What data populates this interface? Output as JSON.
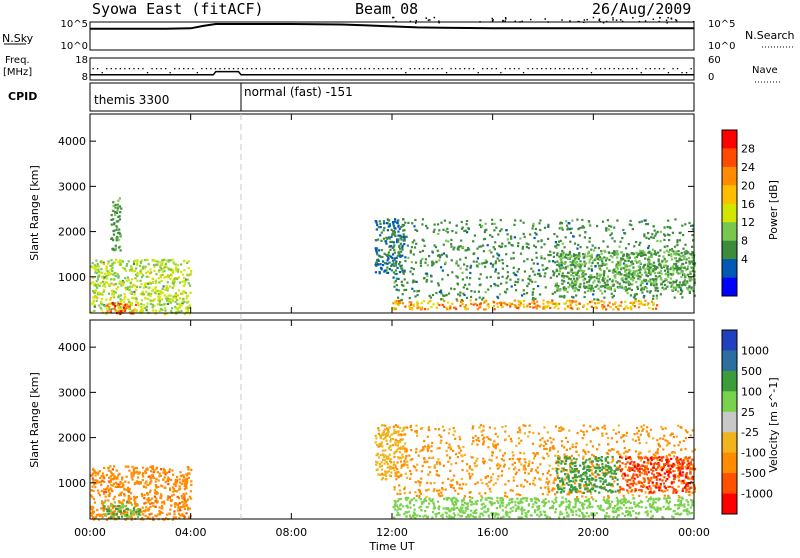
{
  "header": {
    "title": "Syowa East (fitACF)",
    "beam": "Beam 08",
    "date": "26/Aug/2009"
  },
  "top_panels": {
    "nsky_label": "N.Sky",
    "nsky_ticks": [
      "10^5",
      "10^0"
    ],
    "nsearch_label": "N.Search",
    "nsearch_ticks": [
      "10^5",
      "10^0"
    ],
    "freq_label_line1": "Freq.",
    "freq_label_line2": "[MHz]",
    "freq_ticks": [
      "18",
      "8"
    ],
    "nave_label": "Nave",
    "nave_ticks": [
      "60",
      "0"
    ],
    "cpid_label": "CPID",
    "cpid_segments": [
      {
        "label": "themis 3300",
        "start_hour": 0,
        "end_hour": 6
      },
      {
        "label": "normal (fast) -151",
        "start_hour": 6,
        "end_hour": 24
      }
    ]
  },
  "time_axis": {
    "label": "Time UT",
    "ticks": [
      "00:00",
      "04:00",
      "08:00",
      "12:00",
      "16:00",
      "20:00",
      "00:00"
    ]
  },
  "power_colorbar": {
    "label": "Power [dB]",
    "ticks": [
      "28",
      "24",
      "20",
      "16",
      "12",
      "8",
      "4"
    ],
    "colors": [
      "#ff0000",
      "#ff4b00",
      "#ff8c00",
      "#ffbe00",
      "#d2e600",
      "#78c850",
      "#3c8c3c",
      "#005ab4",
      "#0000ff"
    ]
  },
  "velocity_colorbar": {
    "label": "Velocity [m s^-1]",
    "ticks": [
      "1000",
      "500",
      "100",
      "25",
      "-25",
      "-100",
      "-500",
      "-1000"
    ],
    "colors": [
      "#2040c0",
      "#2c6ea0",
      "#3c9c3c",
      "#78d24b",
      "#c8c8c8",
      "#f0b41e",
      "#ff8c00",
      "#ff5000",
      "#ff0000"
    ]
  },
  "chart_data": [
    {
      "type": "line",
      "title": "N.Sky / N.Search",
      "xlim": [
        0,
        24
      ],
      "ylim": [
        0,
        5
      ],
      "log_scale": true,
      "x": [
        0,
        1,
        2,
        3,
        4,
        4.5,
        5,
        6,
        8,
        10,
        11,
        12,
        13,
        14,
        16,
        20,
        22,
        24
      ],
      "series": [
        {
          "name": "N.Sky",
          "values": [
            4.0,
            4.0,
            4.0,
            4.0,
            4.1,
            4.6,
            5.0,
            5.0,
            5.0,
            4.9,
            4.7,
            4.5,
            4.3,
            4.2,
            4.1,
            4.1,
            4.1,
            4.1
          ]
        }
      ]
    },
    {
      "type": "line",
      "title": "Freq / Nave",
      "xlim": [
        0,
        24
      ],
      "ylim": [
        8,
        18
      ],
      "x": [
        0,
        1,
        2,
        3,
        4,
        4.9,
        5.0,
        5.9,
        6.0,
        8,
        10,
        12,
        14,
        16,
        18,
        20,
        22,
        24
      ],
      "series": [
        {
          "name": "Freq.",
          "values": [
            10,
            10,
            10,
            10,
            10,
            10,
            12,
            12,
            10,
            10,
            10,
            10,
            10,
            10,
            10,
            10,
            10,
            10
          ]
        },
        {
          "name": "Nave",
          "values": [
            45,
            45,
            45,
            45,
            45,
            45,
            45,
            45,
            42,
            42,
            42,
            42,
            42,
            42,
            42,
            42,
            42,
            42
          ]
        }
      ]
    },
    {
      "type": "heatmap",
      "title": "Power [dB]",
      "xlabel": "Time UT",
      "ylabel": "Slant Range [km]",
      "xlim": [
        0,
        24
      ],
      "ylim": [
        200,
        4600
      ],
      "yticks": [
        1000,
        2000,
        3000,
        4000
      ],
      "clim": [
        0,
        32
      ],
      "regions": [
        {
          "t0": 0.0,
          "t1": 4.0,
          "r0": 200,
          "r1": 1400,
          "value": 14
        },
        {
          "t0": 0.6,
          "t1": 1.8,
          "r0": 200,
          "r1": 450,
          "value": 28
        },
        {
          "t0": 0.8,
          "t1": 1.2,
          "r0": 1600,
          "r1": 2800,
          "value": 9
        },
        {
          "t0": 11.3,
          "t1": 12.5,
          "r0": 1100,
          "r1": 2300,
          "value": 6
        },
        {
          "t0": 12.0,
          "t1": 22.5,
          "r0": 300,
          "r1": 500,
          "value": 22
        },
        {
          "t0": 12.0,
          "t1": 24.0,
          "r0": 500,
          "r1": 2300,
          "value": 8
        },
        {
          "t0": 18.5,
          "t1": 24.0,
          "r0": 700,
          "r1": 1600,
          "value": 10
        }
      ]
    },
    {
      "type": "heatmap",
      "title": "Velocity [m s^-1]",
      "xlabel": "Time UT",
      "ylabel": "Slant Range [km]",
      "xlim": [
        0,
        24
      ],
      "ylim": [
        200,
        4600
      ],
      "yticks": [
        1000,
        2000,
        3000,
        4000
      ],
      "clim": [
        -1200,
        1200
      ],
      "regions": [
        {
          "t0": 0.0,
          "t1": 4.0,
          "r0": 200,
          "r1": 1400,
          "value": -400
        },
        {
          "t0": 0.5,
          "t1": 2.0,
          "r0": 250,
          "r1": 600,
          "value": 100
        },
        {
          "t0": 11.3,
          "t1": 12.5,
          "r0": 1100,
          "r1": 2300,
          "value": -80
        },
        {
          "t0": 12.0,
          "t1": 24.0,
          "r0": 250,
          "r1": 700,
          "value": 60
        },
        {
          "t0": 12.0,
          "t1": 24.0,
          "r0": 700,
          "r1": 2300,
          "value": -120
        },
        {
          "t0": 18.5,
          "t1": 21.0,
          "r0": 800,
          "r1": 1600,
          "value": 300
        },
        {
          "t0": 21.0,
          "t1": 24.0,
          "r0": 800,
          "r1": 1600,
          "value": -900
        }
      ]
    }
  ]
}
